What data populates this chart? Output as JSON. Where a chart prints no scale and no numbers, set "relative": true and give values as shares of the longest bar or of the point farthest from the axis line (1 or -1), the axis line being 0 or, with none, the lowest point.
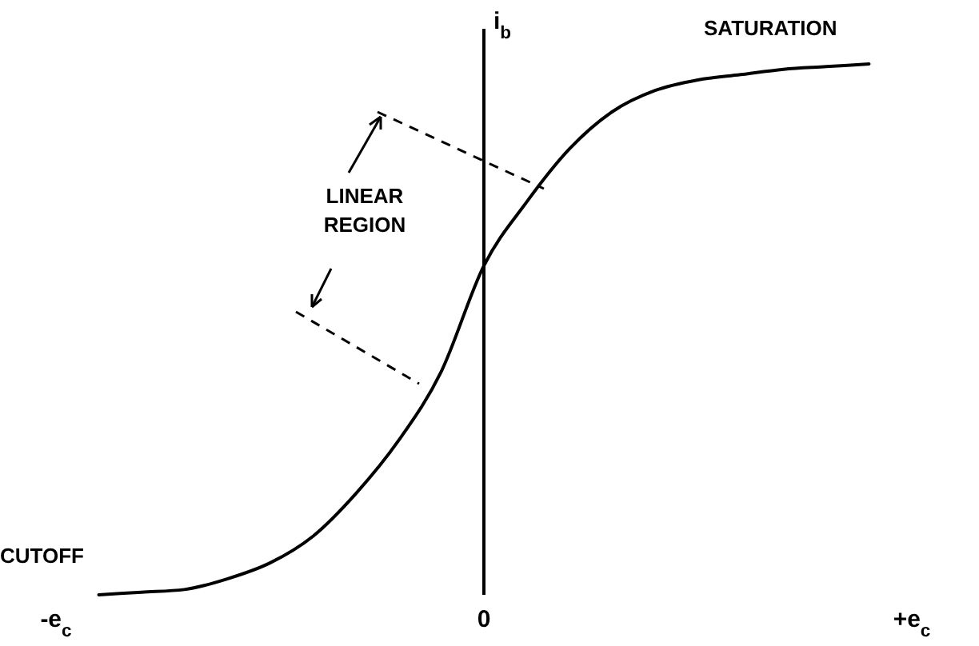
{
  "chart_data": {
    "type": "line",
    "relative": true,
    "ylabel": "i$_{b}$",
    "categories": [
      "-e$_{c}$",
      null,
      null,
      null,
      null,
      null,
      null,
      null,
      null,
      null,
      "0",
      null,
      null,
      null,
      null,
      null,
      null,
      null,
      null,
      null,
      "+e$_{c}$"
    ],
    "series": [
      {
        "color": "#000000",
        "values": [
          null,
          0,
          0.005,
          0.01,
          0.03,
          0.06,
          0.11,
          0.19,
          0.29,
          0.42,
          0.62,
          0.74,
          0.84,
          0.91,
          0.95,
          0.97,
          0.98,
          0.99,
          0.995,
          1,
          null
        ]
      }
    ],
    "annotations": [
      "SATURATION",
      "LINEAR\nREGION",
      "CUTOFF"
    ],
    "marker": "none",
    "line_style": "solid"
  }
}
